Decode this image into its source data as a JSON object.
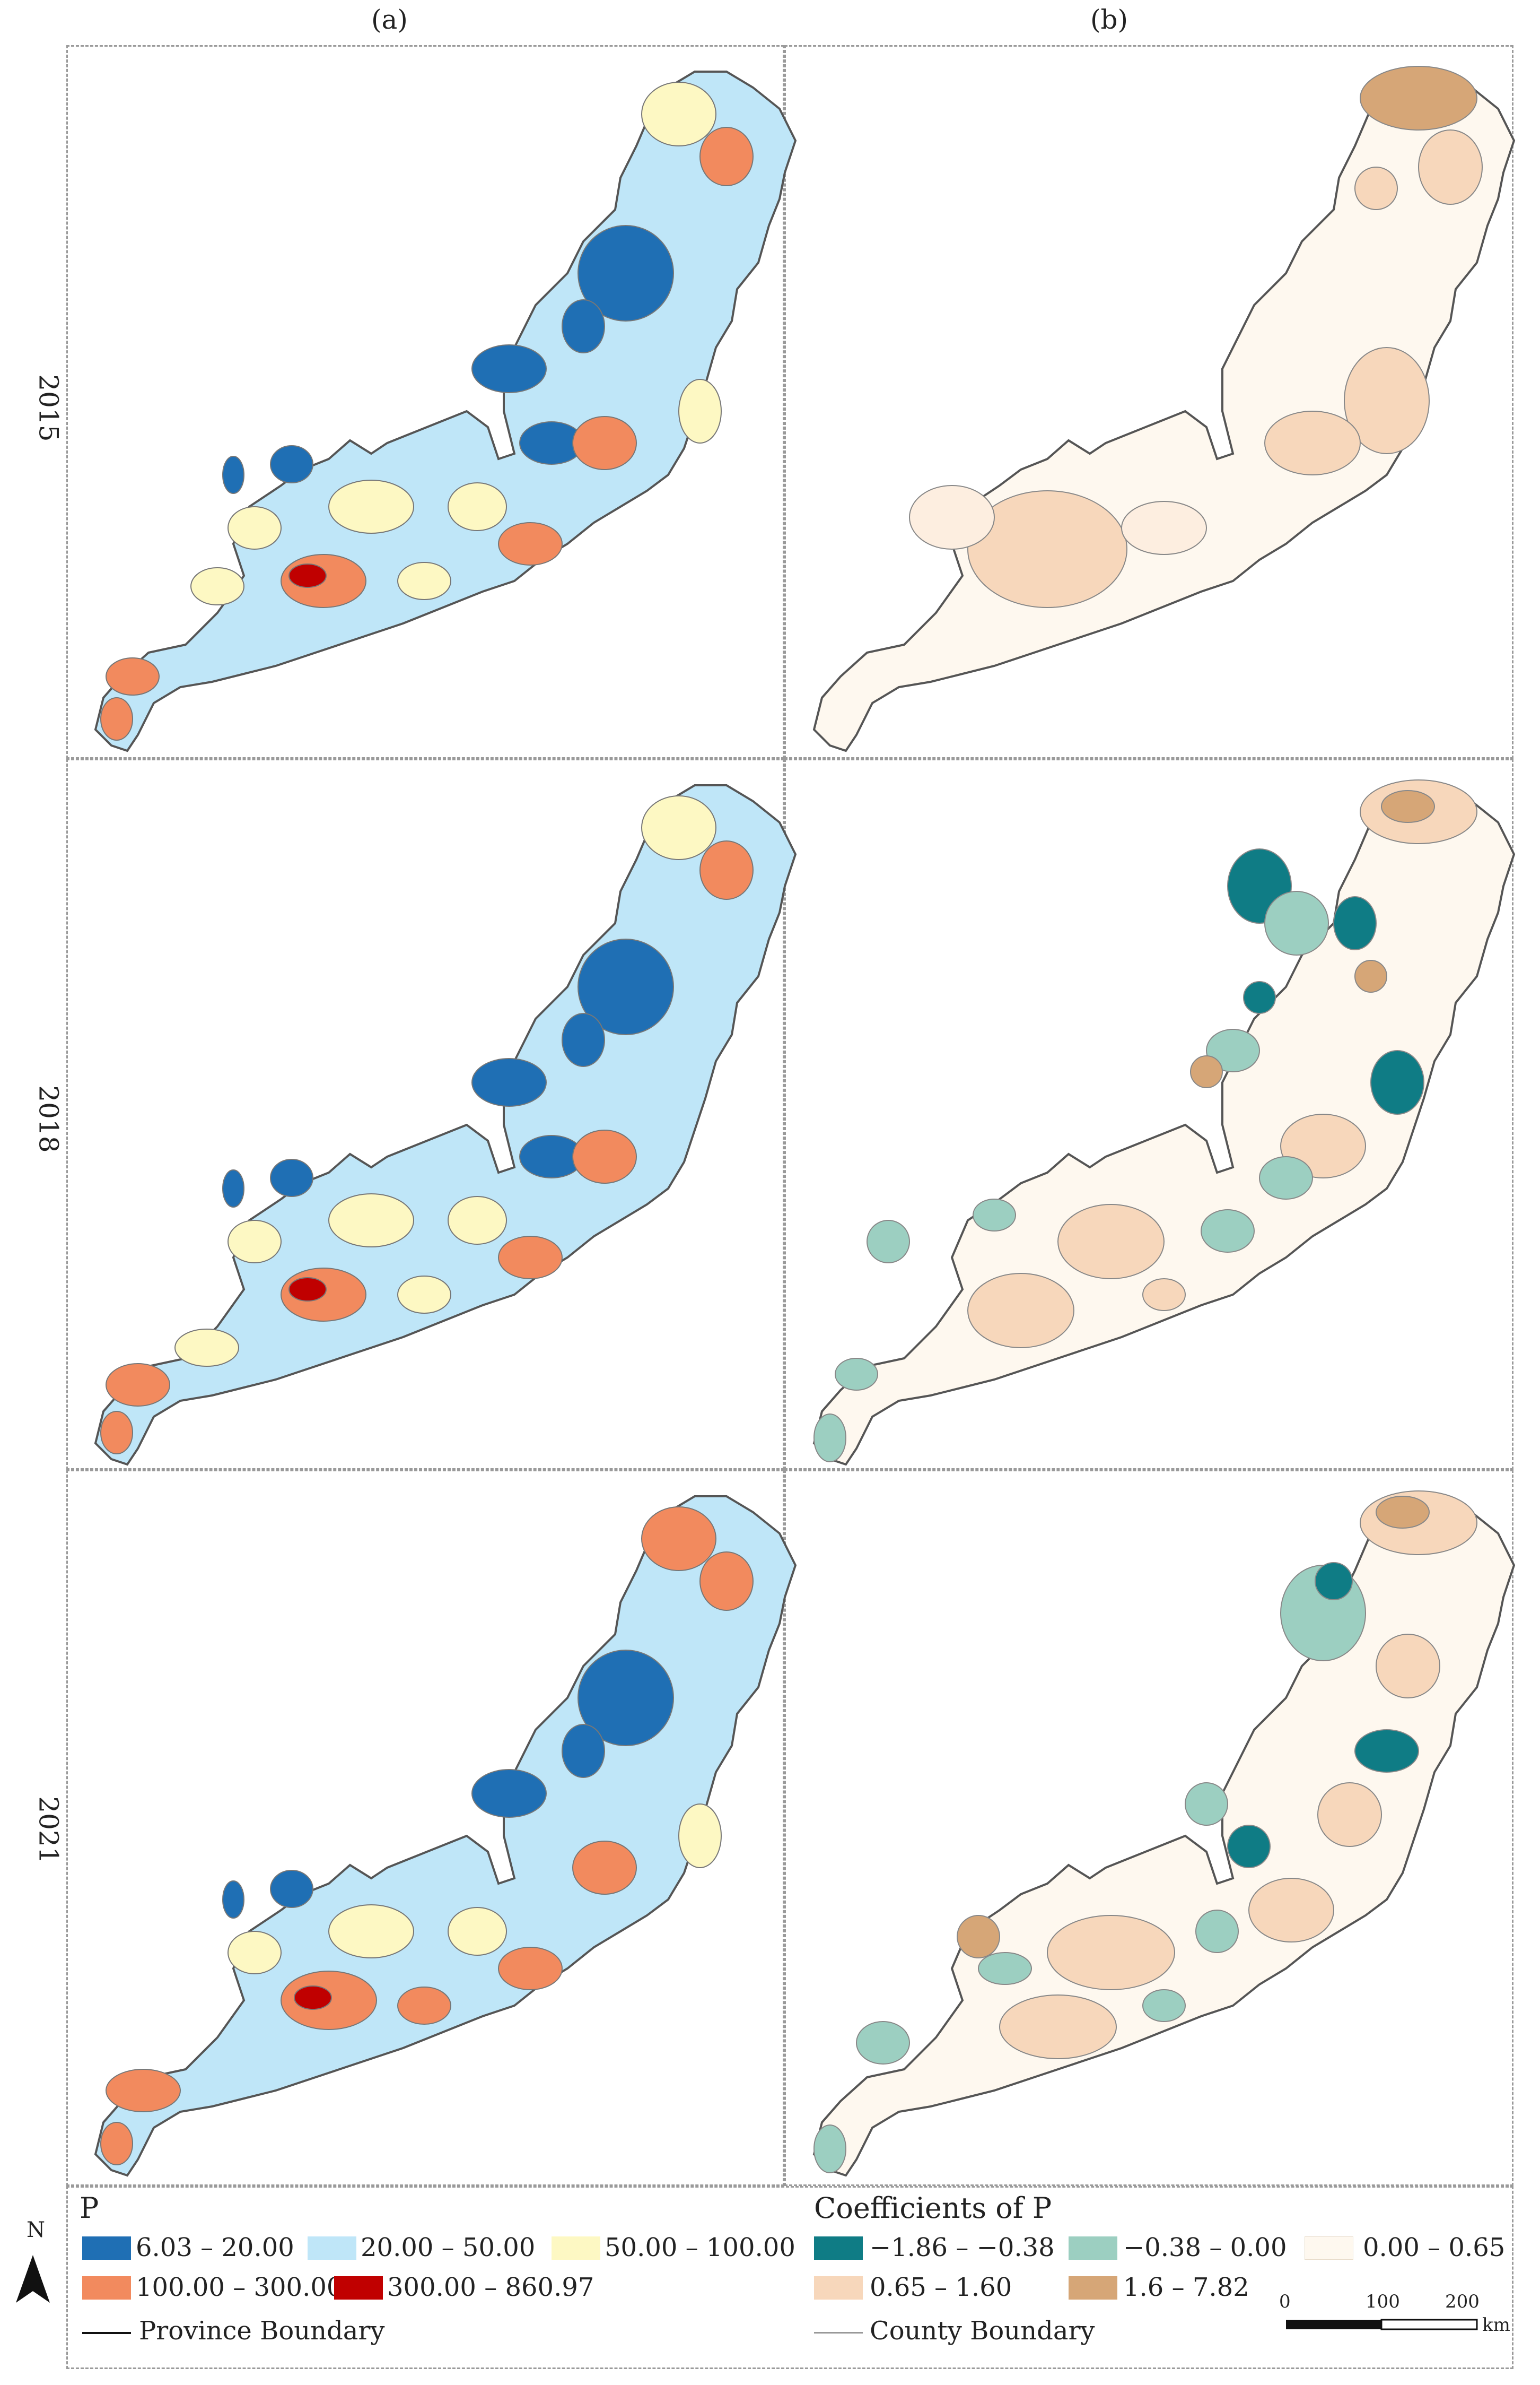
{
  "columns": [
    {
      "label": "(a)"
    },
    {
      "label": "(b)"
    }
  ],
  "rows": [
    {
      "label": "2015"
    },
    {
      "label": "2018"
    },
    {
      "label": "2021"
    }
  ],
  "legend_a": {
    "title": "P",
    "classes": [
      {
        "label": "6.03 – 20.00",
        "color": "#1f6fb4"
      },
      {
        "label": "20.00 – 50.00",
        "color": "#bfe6f8"
      },
      {
        "label": "50.00 – 100.00",
        "color": "#fdf8c3"
      },
      {
        "label": "100.00 – 300.00",
        "color": "#f28a5e"
      },
      {
        "label": "300.00 – 860.97",
        "color": "#c00000"
      }
    ],
    "boundary_label": "Province Boundary"
  },
  "legend_b": {
    "title": "Coefficients of P",
    "classes": [
      {
        "label": "−1.86 – −0.38",
        "color": "#0f7c85"
      },
      {
        "label": "−0.38 – 0.00",
        "color": "#9ccfc1"
      },
      {
        "label": "0.00 – 0.65",
        "color": "#fef8ef"
      },
      {
        "label": "0.65 – 1.60",
        "color": "#f7d7bb"
      },
      {
        "label": "1.6 – 7.82",
        "color": "#d6a677"
      }
    ],
    "boundary_label": "County Boundary"
  },
  "north_arrow": {
    "label": "N"
  },
  "scale_bar": {
    "ticks": [
      "0",
      "100",
      "200"
    ],
    "unit": "km"
  }
}
